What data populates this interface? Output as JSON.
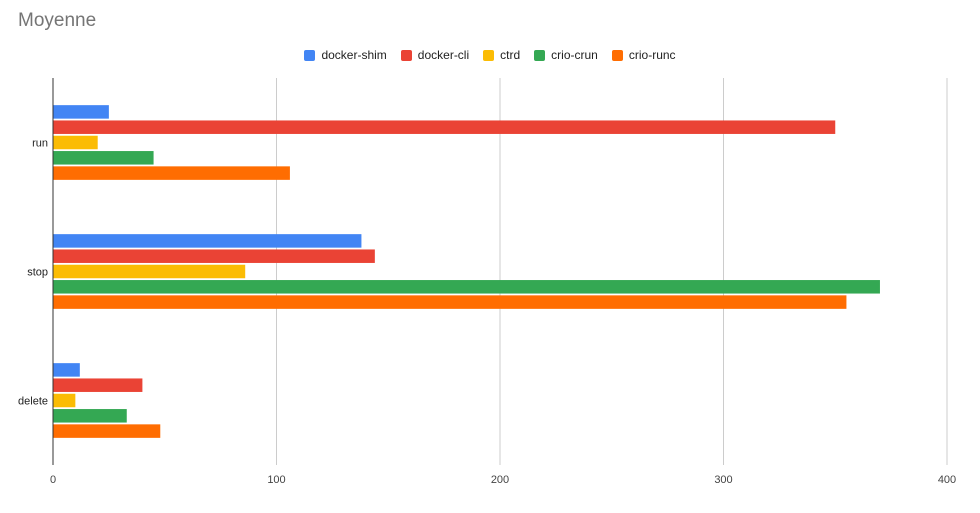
{
  "chart_data": {
    "type": "bar",
    "orientation": "horizontal",
    "title": "Moyenne",
    "categories": [
      "run",
      "stop",
      "delete"
    ],
    "series": [
      {
        "name": "docker-shim",
        "color": "#4285f4",
        "values": [
          25,
          138,
          12
        ]
      },
      {
        "name": "docker-cli",
        "color": "#ea4335",
        "values": [
          350,
          144,
          40
        ]
      },
      {
        "name": "ctrd",
        "color": "#fbbc04",
        "values": [
          20,
          86,
          10
        ]
      },
      {
        "name": "crio-crun",
        "color": "#34a853",
        "values": [
          45,
          370,
          33
        ]
      },
      {
        "name": "crio-runc",
        "color": "#ff6d01",
        "values": [
          106,
          355,
          48
        ]
      }
    ],
    "xlim": [
      0,
      400
    ],
    "xticks": [
      0,
      100,
      200,
      300,
      400
    ],
    "xtick_labels": [
      "0",
      "100",
      "200",
      "300",
      "400"
    ],
    "grid": true,
    "legend_position": "top-center"
  }
}
